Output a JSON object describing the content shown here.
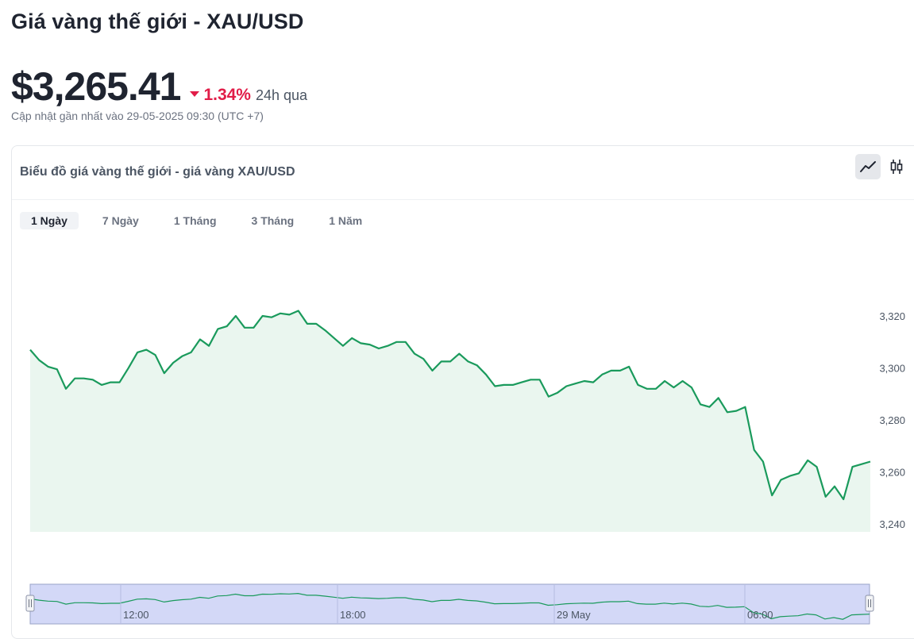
{
  "page_title": "Giá vàng thế giới - XAU/USD",
  "price": "$3,265.41",
  "change_pct": "1.34%",
  "change_period": "24h qua",
  "change_direction": "down",
  "updated": "Cập nhật gần nhất vào 29-05-2025 09:30 (UTC +7)",
  "card_title": "Biểu đồ giá vàng thế giới - giá vàng XAU/USD",
  "chart_modes": [
    {
      "icon": "line-chart-icon",
      "active": true
    },
    {
      "icon": "candlestick-icon",
      "active": false
    }
  ],
  "tabs": [
    {
      "label": "1 Ngày",
      "active": true
    },
    {
      "label": "7 Ngày",
      "active": false
    },
    {
      "label": "1 Tháng",
      "active": false
    },
    {
      "label": "3 Tháng",
      "active": false
    },
    {
      "label": "1 Năm",
      "active": false
    }
  ],
  "colors": {
    "line": "#1a9a5c",
    "area": "#eaf6ef",
    "down": "#e11d48",
    "navigator_selection": "#d3d8f7"
  },
  "chart_data": {
    "type": "area",
    "title": "",
    "xlabel": "",
    "ylabel": "",
    "ylim": [
      3237,
      3331
    ],
    "ytick_values": [
      3240,
      3260,
      3280,
      3300,
      3320
    ],
    "ytick_labels": [
      "3,240",
      "3,260",
      "3,280",
      "3,300",
      "3,320"
    ],
    "grid": false,
    "navigator_labels": [
      "12:00",
      "18:00",
      "29 May",
      "06:00"
    ],
    "series": [
      {
        "values": [
          3307,
          3303,
          3300.5,
          3299.5,
          3292,
          3296,
          3296,
          3295.5,
          3293.5,
          3294.5,
          3294.5,
          3300,
          3306,
          3307,
          3305,
          3298,
          3302,
          3304.5,
          3306,
          3311,
          3308.5,
          3315,
          3316,
          3320,
          3315.5,
          3315.5,
          3320,
          3319.5,
          3321,
          3320.5,
          3322,
          3317,
          3317,
          3314.5,
          3311.5,
          3308.5,
          3311.5,
          3309.5,
          3309,
          3307.5,
          3308.5,
          3310,
          3310,
          3305.5,
          3303.5,
          3299,
          3302.5,
          3302.5,
          3305.5,
          3302.5,
          3301,
          3297.5,
          3293,
          3293.5,
          3293.5,
          3294.5,
          3295.5,
          3295.5,
          3289,
          3290.5,
          3293,
          3294,
          3295,
          3294.5,
          3297.5,
          3299,
          3299,
          3300.5,
          3293.5,
          3292,
          3292,
          3295,
          3292.5,
          3295,
          3292.5,
          3286,
          3285,
          3288.5,
          3283,
          3283.5,
          3285,
          3268.5,
          3264,
          3251,
          3257,
          3258.5,
          3259.5,
          3264.5,
          3262,
          3250.5,
          3254.5,
          3249.5,
          3262,
          3263,
          3264
        ]
      }
    ]
  }
}
